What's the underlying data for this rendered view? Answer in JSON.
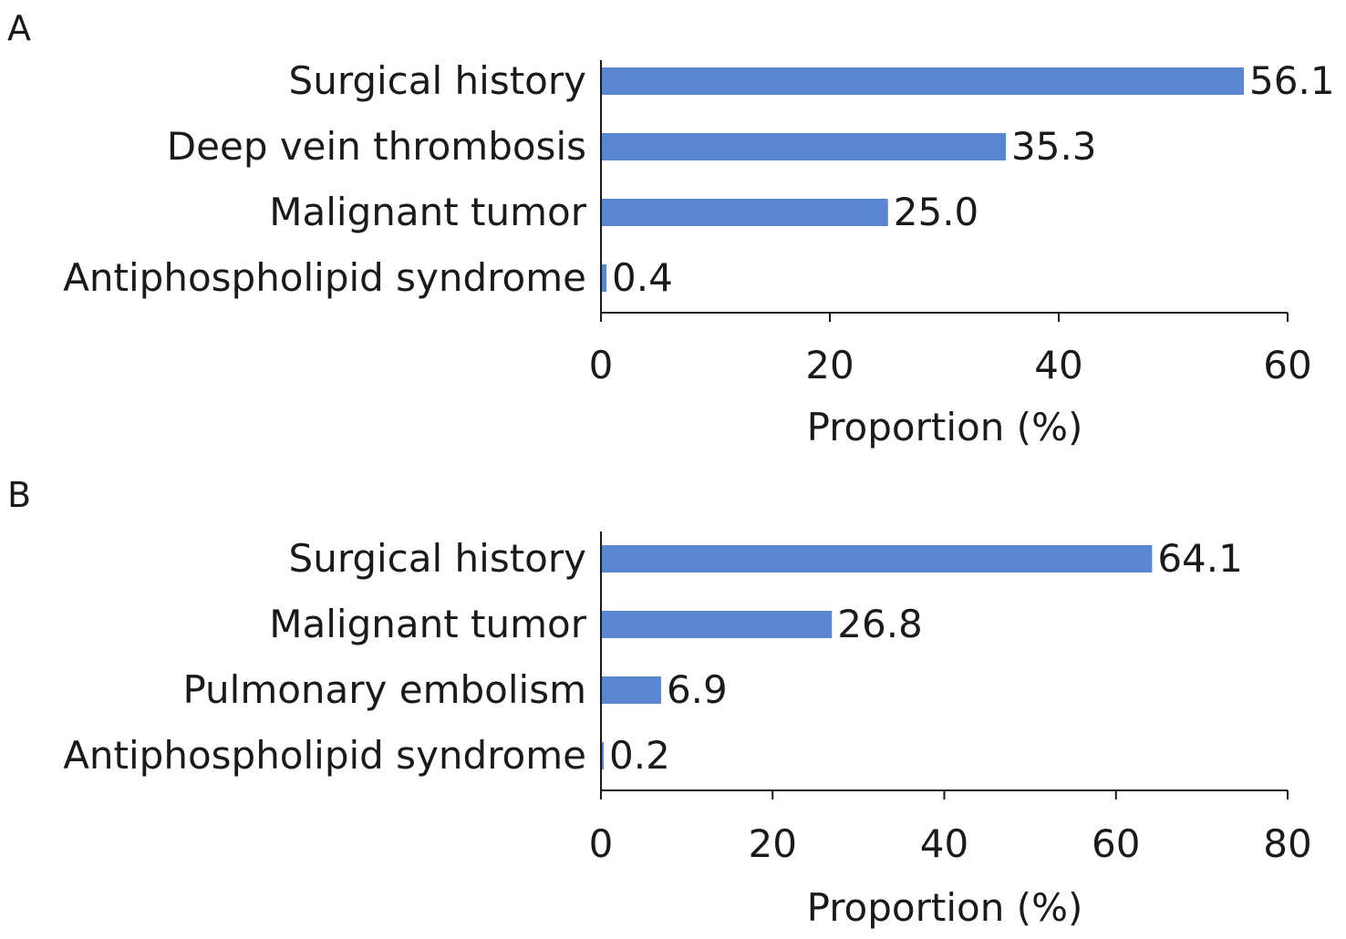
{
  "chart_data": [
    {
      "type": "bar",
      "orientation": "horizontal",
      "panel_label": "A",
      "categories": [
        "Surgical history",
        "Deep vein thrombosis",
        "Malignant tumor",
        "Antiphospholipid syndrome"
      ],
      "values": [
        56.1,
        35.3,
        25.0,
        0.4
      ],
      "value_labels": [
        "56.1",
        "35.3",
        "25.0",
        "0.4"
      ],
      "xlabel": "Proportion (%)",
      "ylabel": "",
      "xlim": [
        0,
        60
      ],
      "xticks": [
        0,
        20,
        40,
        60
      ],
      "grid": false,
      "bar_color": "#5b85d0"
    },
    {
      "type": "bar",
      "orientation": "horizontal",
      "panel_label": "B",
      "categories": [
        "Surgical history",
        "Malignant tumor",
        "Pulmonary embolism",
        "Antiphospholipid syndrome"
      ],
      "values": [
        64.1,
        26.8,
        6.9,
        0.2
      ],
      "value_labels": [
        "64.1",
        "26.8",
        "6.9",
        "0.2"
      ],
      "xlabel": "Proportion (%)",
      "ylabel": "",
      "xlim": [
        0,
        80
      ],
      "xticks": [
        0,
        20,
        40,
        60,
        80
      ],
      "grid": false,
      "bar_color": "#5b85d0"
    }
  ]
}
